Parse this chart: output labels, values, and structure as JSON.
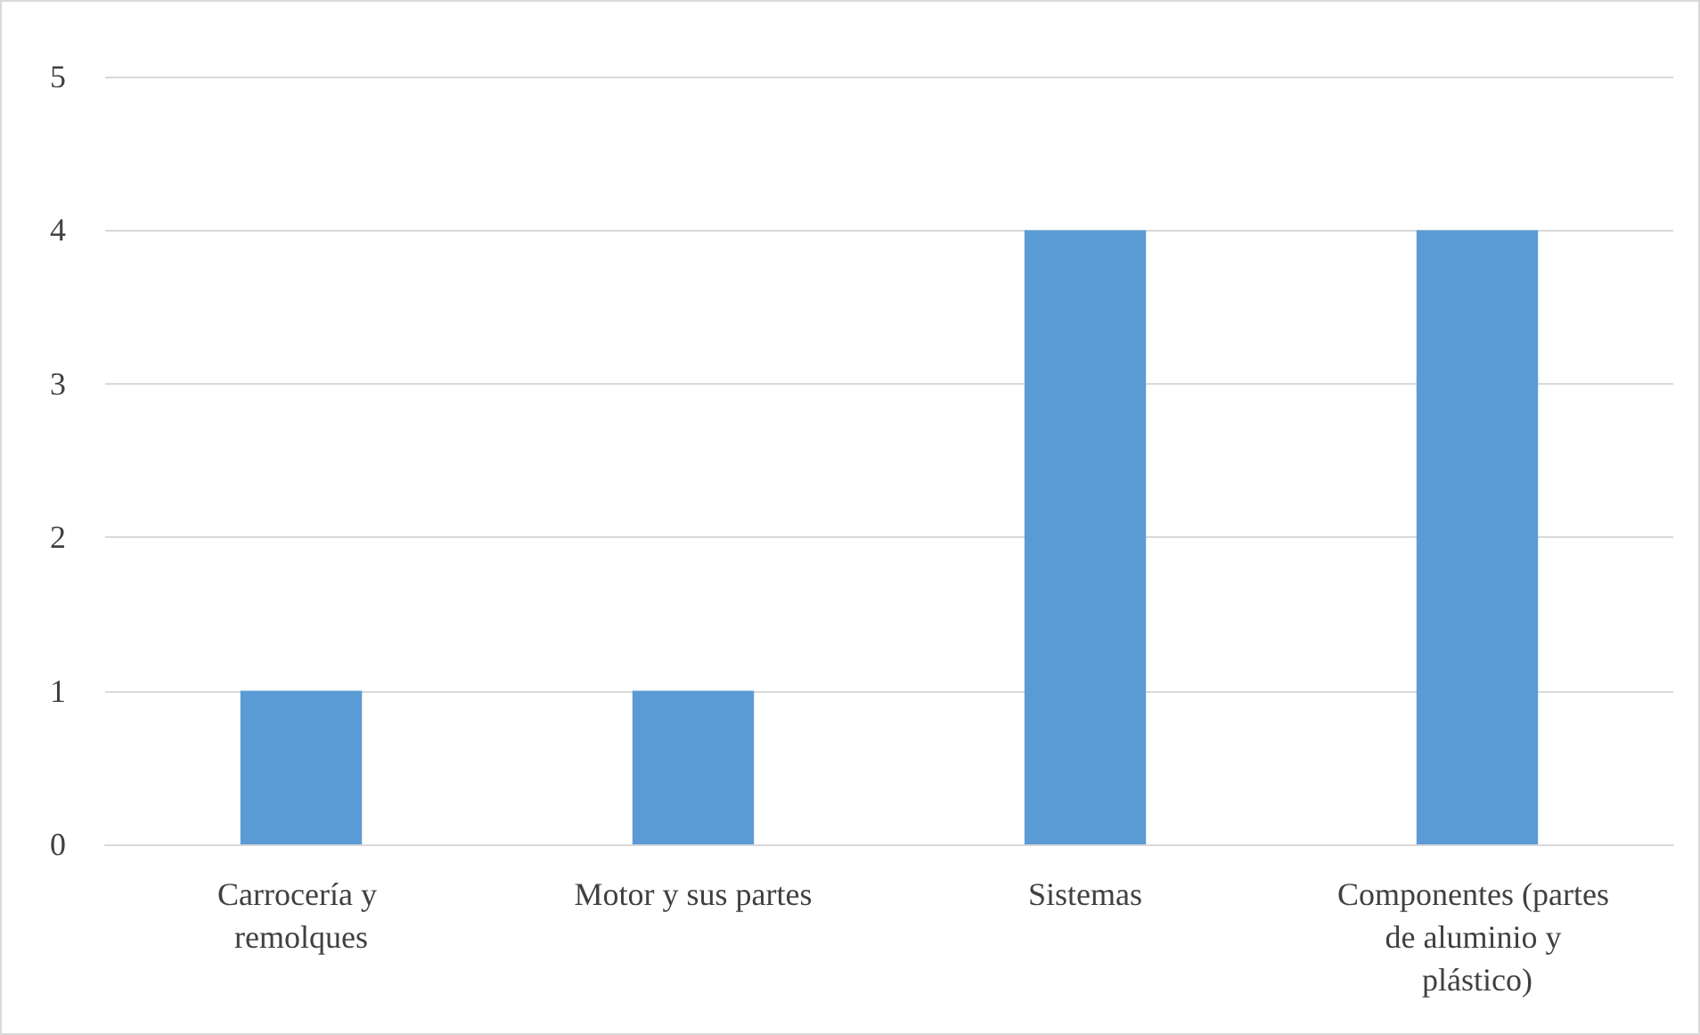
{
  "chart_data": {
    "type": "bar",
    "categories": [
      "Carrocería y remolques",
      "Motor y sus partes",
      "Sistemas",
      "Componentes (partes de aluminio y plástico)"
    ],
    "values": [
      1,
      1,
      4,
      4
    ],
    "color": "#5b9bd5",
    "ylim": [
      0,
      5
    ],
    "yticks": [
      0,
      1,
      2,
      3,
      4,
      5
    ],
    "grid": "y"
  }
}
